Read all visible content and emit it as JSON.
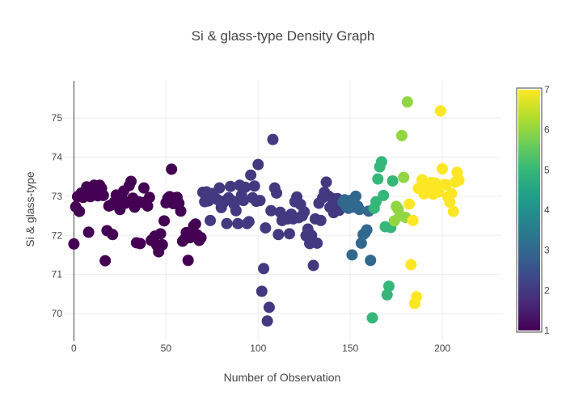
{
  "chart_data": {
    "type": "scatter",
    "title": "Si & glass-type Density Graph",
    "xlabel": "Number of Observation",
    "ylabel": "Si & glass-type",
    "xlim": [
      -5,
      232
    ],
    "ylim": [
      69.3,
      75.95
    ],
    "x_ticks": [
      0,
      50,
      100,
      150,
      200
    ],
    "y_ticks": [
      70,
      71,
      72,
      73,
      74,
      75
    ],
    "grid": true,
    "zeroline_x": true,
    "colorscale": "viridis",
    "color_range": [
      1,
      7
    ],
    "colorbar_ticks": [
      1,
      2,
      3,
      4,
      5,
      6,
      7
    ],
    "colorscale_stops": [
      [
        0.0,
        "#440154"
      ],
      [
        0.111,
        "#482878"
      ],
      [
        0.222,
        "#3e4989"
      ],
      [
        0.333,
        "#31688e"
      ],
      [
        0.444,
        "#26828e"
      ],
      [
        0.556,
        "#1f9e89"
      ],
      [
        0.667,
        "#35b779"
      ],
      [
        0.778,
        "#6ece58"
      ],
      [
        0.889,
        "#b5de2b"
      ],
      [
        1.0,
        "#fde725"
      ]
    ],
    "marker_size": 14,
    "points": [
      [
        0,
        71.78,
        1
      ],
      [
        1,
        72.73,
        1
      ],
      [
        2,
        72.99,
        1
      ],
      [
        3,
        72.61,
        1
      ],
      [
        4,
        73.08,
        1
      ],
      [
        5,
        72.97,
        1
      ],
      [
        6,
        73.09,
        1
      ],
      [
        7,
        73.24,
        1
      ],
      [
        8,
        72.08,
        1
      ],
      [
        9,
        72.99,
        1
      ],
      [
        10,
        73.1,
        1
      ],
      [
        11,
        73.28,
        1
      ],
      [
        12,
        73.2,
        1
      ],
      [
        13,
        73.01,
        1
      ],
      [
        14,
        73.28,
        1
      ],
      [
        15,
        73.2,
        1
      ],
      [
        16,
        73.02,
        1
      ],
      [
        17,
        71.35,
        1
      ],
      [
        18,
        72.12,
        1
      ],
      [
        19,
        72.75,
        1
      ],
      [
        20,
        72.77,
        1
      ],
      [
        21,
        72.02,
        1
      ],
      [
        22,
        72.85,
        1
      ],
      [
        23,
        73.03,
        1
      ],
      [
        24,
        72.98,
        1
      ],
      [
        25,
        72.66,
        1
      ],
      [
        26,
        72.95,
        1
      ],
      [
        27,
        73.13,
        1
      ],
      [
        28,
        72.82,
        1
      ],
      [
        29,
        72.85,
        1
      ],
      [
        30,
        73.27,
        1
      ],
      [
        31,
        73.38,
        1
      ],
      [
        32,
        72.95,
        1
      ],
      [
        33,
        72.72,
        1
      ],
      [
        34,
        71.81,
        1
      ],
      [
        35,
        72.86,
        1
      ],
      [
        36,
        71.79,
        1
      ],
      [
        37,
        72.84,
        1
      ],
      [
        38,
        73.21,
        1
      ],
      [
        39,
        72.85,
        1
      ],
      [
        40,
        72.75,
        1
      ],
      [
        41,
        72.97,
        1
      ],
      [
        42,
        71.87,
        1
      ],
      [
        43,
        71.9,
        1
      ],
      [
        44,
        71.98,
        1
      ],
      [
        45,
        71.75,
        1
      ],
      [
        46,
        71.58,
        1
      ],
      [
        47,
        72.04,
        1
      ],
      [
        48,
        71.76,
        1
      ],
      [
        49,
        72.37,
        1
      ],
      [
        50,
        72.83,
        1
      ],
      [
        51,
        72.95,
        1
      ],
      [
        52,
        72.99,
        1
      ],
      [
        53,
        73.69,
        1
      ],
      [
        54,
        72.81,
        1
      ],
      [
        55,
        72.96,
        1
      ],
      [
        56,
        72.97,
        1
      ],
      [
        57,
        72.82,
        1
      ],
      [
        58,
        72.62,
        1
      ],
      [
        59,
        71.85,
        1
      ],
      [
        60,
        71.9,
        1
      ],
      [
        61,
        72.07,
        1
      ],
      [
        62,
        71.36,
        1
      ],
      [
        63,
        71.94,
        1
      ],
      [
        64,
        72.08,
        1
      ],
      [
        65,
        72.24,
        1
      ],
      [
        66,
        72.29,
        1
      ],
      [
        67,
        72.01,
        1
      ],
      [
        68,
        71.87,
        1
      ],
      [
        69,
        71.94,
        1
      ],
      [
        70,
        73.1,
        2
      ],
      [
        71,
        72.86,
        2
      ],
      [
        72,
        73.11,
        2
      ],
      [
        73,
        72.88,
        2
      ],
      [
        74,
        72.38,
        2
      ],
      [
        75,
        73.07,
        2
      ],
      [
        76,
        72.95,
        2
      ],
      [
        77,
        72.94,
        2
      ],
      [
        78,
        72.91,
        2
      ],
      [
        79,
        73.21,
        2
      ],
      [
        80,
        72.71,
        2
      ],
      [
        81,
        72.83,
        2
      ],
      [
        82,
        72.88,
        2
      ],
      [
        83,
        72.3,
        2
      ],
      [
        84,
        72.96,
        2
      ],
      [
        85,
        73.25,
        2
      ],
      [
        86,
        72.88,
        2
      ],
      [
        87,
        72.79,
        2
      ],
      [
        88,
        72.63,
        2
      ],
      [
        89,
        72.3,
        2
      ],
      [
        90,
        73.28,
        2
      ],
      [
        91,
        73.03,
        2
      ],
      [
        92,
        72.89,
        2
      ],
      [
        93,
        73.23,
        2
      ],
      [
        94,
        72.3,
        2
      ],
      [
        95,
        72.35,
        2
      ],
      [
        96,
        73.54,
        2
      ],
      [
        97,
        72.96,
        2
      ],
      [
        98,
        73.26,
        2
      ],
      [
        99,
        72.87,
        2
      ],
      [
        100,
        73.81,
        2
      ],
      [
        101,
        72.89,
        2
      ],
      [
        102,
        70.57,
        2
      ],
      [
        103,
        71.15,
        2
      ],
      [
        104,
        72.19,
        2
      ],
      [
        105,
        69.81,
        2
      ],
      [
        106,
        70.16,
        2
      ],
      [
        107,
        72.63,
        2
      ],
      [
        108,
        74.45,
        2
      ],
      [
        109,
        73.21,
        2
      ],
      [
        110,
        73.08,
        2
      ],
      [
        111,
        72.02,
        2
      ],
      [
        112,
        72.59,
        2
      ],
      [
        113,
        72.38,
        2
      ],
      [
        114,
        72.44,
        2
      ],
      [
        115,
        72.44,
        2
      ],
      [
        116,
        72.42,
        2
      ],
      [
        117,
        72.04,
        2
      ],
      [
        118,
        72.54,
        2
      ],
      [
        119,
        72.42,
        2
      ],
      [
        120,
        72.86,
        2
      ],
      [
        121,
        72.98,
        2
      ],
      [
        122,
        72.45,
        2
      ],
      [
        123,
        72.79,
        2
      ],
      [
        124,
        72.5,
        2
      ],
      [
        125,
        72.6,
        2
      ],
      [
        126,
        71.99,
        2
      ],
      [
        127,
        72.16,
        2
      ],
      [
        128,
        71.79,
        2
      ],
      [
        129,
        72.0,
        2
      ],
      [
        130,
        71.23,
        2
      ],
      [
        131,
        72.42,
        2
      ],
      [
        132,
        71.8,
        2
      ],
      [
        133,
        72.82,
        2
      ],
      [
        134,
        72.38,
        2
      ],
      [
        135,
        72.96,
        2
      ],
      [
        136,
        73.1,
        2
      ],
      [
        137,
        73.36,
        2
      ],
      [
        138,
        73.01,
        2
      ],
      [
        139,
        72.72,
        2
      ],
      [
        140,
        72.95,
        2
      ],
      [
        141,
        72.58,
        2
      ],
      [
        142,
        72.76,
        2
      ],
      [
        143,
        72.94,
        2
      ],
      [
        144,
        72.64,
        2
      ],
      [
        145,
        72.81,
        2
      ],
      [
        146,
        72.85,
        3
      ],
      [
        147,
        72.91,
        3
      ],
      [
        148,
        72.72,
        3
      ],
      [
        149,
        72.69,
        3
      ],
      [
        150,
        72.89,
        3
      ],
      [
        151,
        71.5,
        3
      ],
      [
        152,
        72.72,
        3
      ],
      [
        153,
        73.0,
        3
      ],
      [
        154,
        72.75,
        3
      ],
      [
        155,
        72.66,
        3
      ],
      [
        156,
        71.8,
        3
      ],
      [
        157,
        72.02,
        3
      ],
      [
        158,
        72.06,
        3
      ],
      [
        159,
        72.14,
        3
      ],
      [
        160,
        72.62,
        3
      ],
      [
        161,
        71.36,
        3
      ],
      [
        162,
        69.89,
        5
      ],
      [
        163,
        72.69,
        5
      ],
      [
        164,
        72.86,
        5
      ],
      [
        165,
        73.44,
        5
      ],
      [
        166,
        73.75,
        5
      ],
      [
        167,
        73.88,
        5
      ],
      [
        168,
        73.02,
        5
      ],
      [
        169,
        72.22,
        5
      ],
      [
        170,
        70.48,
        5
      ],
      [
        171,
        70.7,
        5
      ],
      [
        172,
        72.2,
        5
      ],
      [
        173,
        73.39,
        5
      ],
      [
        174,
        72.37,
        6
      ],
      [
        175,
        72.74,
        6
      ],
      [
        176,
        72.67,
        6
      ],
      [
        177,
        72.5,
        6
      ],
      [
        178,
        74.55,
        6
      ],
      [
        179,
        73.48,
        6
      ],
      [
        180,
        72.46,
        6
      ],
      [
        181,
        75.41,
        6
      ],
      [
        182,
        72.8,
        7
      ],
      [
        183,
        71.25,
        7
      ],
      [
        184,
        72.38,
        7
      ],
      [
        185,
        70.26,
        7
      ],
      [
        186,
        70.43,
        7
      ],
      [
        187,
        73.2,
        7
      ],
      [
        188,
        73.22,
        7
      ],
      [
        189,
        73.42,
        7
      ],
      [
        190,
        73.06,
        7
      ],
      [
        191,
        73.3,
        7
      ],
      [
        192,
        73.14,
        7
      ],
      [
        193,
        73.29,
        7
      ],
      [
        194,
        73.35,
        7
      ],
      [
        195,
        73.05,
        7
      ],
      [
        196,
        73.34,
        7
      ],
      [
        197,
        73.2,
        7
      ],
      [
        198,
        73.11,
        7
      ],
      [
        199,
        75.18,
        7
      ],
      [
        200,
        73.7,
        7
      ],
      [
        201,
        73.3,
        7
      ],
      [
        202,
        73.29,
        7
      ],
      [
        203,
        72.98,
        7
      ],
      [
        204,
        72.85,
        7
      ],
      [
        205,
        73.07,
        7
      ],
      [
        206,
        72.61,
        7
      ],
      [
        207,
        73.36,
        7
      ],
      [
        208,
        73.61,
        7
      ],
      [
        209,
        73.41,
        7
      ]
    ]
  }
}
